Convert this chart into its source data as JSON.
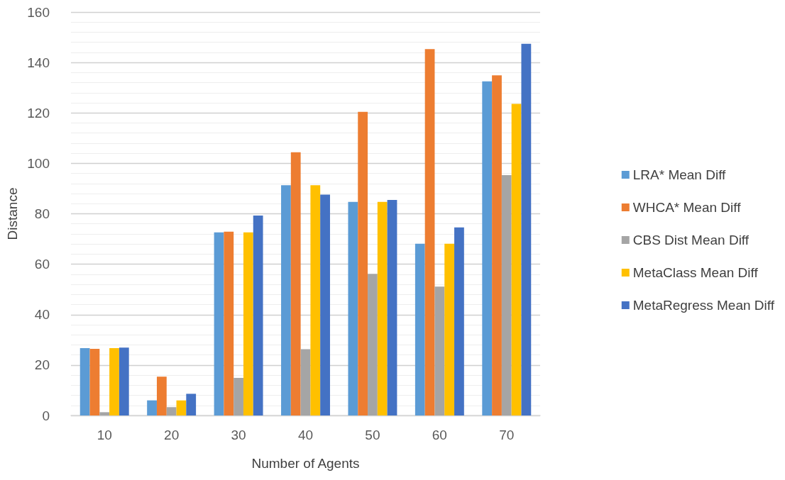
{
  "chart_data": {
    "type": "bar",
    "xlabel": "Number of Agents",
    "ylabel": "Distance",
    "categories": [
      "10",
      "20",
      "30",
      "40",
      "50",
      "60",
      "70"
    ],
    "series": [
      {
        "name": "LRA* Mean Diff",
        "color": "#5b9bd5",
        "values": [
          26.7,
          6.0,
          72.6,
          91.3,
          84.7,
          68.1,
          132.5
        ]
      },
      {
        "name": "WHCA* Mean Diff",
        "color": "#ed7d31",
        "values": [
          26.4,
          15.4,
          72.9,
          104.4,
          120.4,
          145.3,
          134.9
        ]
      },
      {
        "name": "CBS Dist Mean Diff",
        "color": "#a5a5a5",
        "values": [
          1.3,
          3.3,
          14.9,
          26.3,
          56.2,
          51.1,
          95.3
        ]
      },
      {
        "name": "MetaClass Mean Diff",
        "color": "#ffc000",
        "values": [
          26.7,
          6.0,
          72.6,
          91.3,
          84.7,
          68.1,
          123.6
        ]
      },
      {
        "name": "MetaRegress Mean Diff",
        "color": "#4472c4",
        "values": [
          26.9,
          8.6,
          79.3,
          87.6,
          85.5,
          74.6,
          147.4
        ]
      }
    ],
    "ylim": [
      0,
      160
    ],
    "yticks": [
      0,
      20,
      40,
      60,
      80,
      100,
      120,
      140,
      160
    ],
    "grid": "y",
    "legend": "right"
  }
}
